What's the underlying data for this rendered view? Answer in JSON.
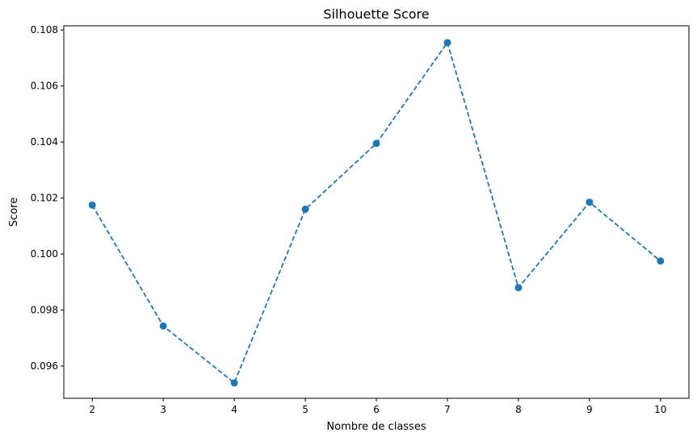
{
  "chart_data": {
    "type": "line",
    "title": "Silhouette Score",
    "xlabel": "Nombre de classes",
    "ylabel": "Score",
    "x": [
      2,
      3,
      4,
      5,
      6,
      7,
      8,
      9,
      10
    ],
    "series": [
      {
        "values": [
          0.10175,
          0.09743,
          0.0954,
          0.1016,
          0.10395,
          0.10755,
          0.0988,
          0.10185,
          0.09975
        ],
        "color": "#1f77b4",
        "line_style": "dashed",
        "marker": "circle"
      }
    ],
    "xlim": [
      1.6,
      10.4
    ],
    "ylim": [
      0.09485,
      0.10815
    ],
    "xticks": [
      2,
      3,
      4,
      5,
      6,
      7,
      8,
      9,
      10
    ],
    "yticks": [
      "0.096",
      "0.098",
      "0.100",
      "0.102",
      "0.104",
      "0.106",
      "0.108"
    ],
    "grid": false,
    "legend": "none"
  }
}
